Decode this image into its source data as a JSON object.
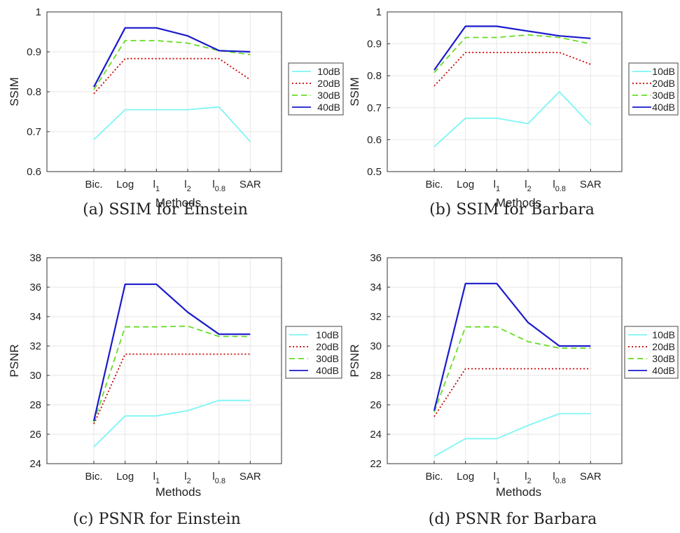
{
  "chart_data": [
    {
      "type": "line",
      "caption": "(a) SSIM for Einstein",
      "xlabel": "Methods",
      "ylabel": "SSIM",
      "categories": [
        {
          "base": "Bic.",
          "sub": ""
        },
        {
          "base": "Log",
          "sub": ""
        },
        {
          "base": "l",
          "sub": "1"
        },
        {
          "base": "l",
          "sub": "2"
        },
        {
          "base": "l",
          "sub": "0.8"
        },
        {
          "base": "SAR",
          "sub": ""
        }
      ],
      "ylim": [
        0.6,
        1
      ],
      "yticks": [
        "0.6",
        "0.7",
        "0.8",
        "0.9",
        "1"
      ],
      "grid": true,
      "legend": "right",
      "series": [
        {
          "name": "10dB",
          "color": "#7ff5f5",
          "dash": "solid",
          "values": [
            0.68,
            0.755,
            0.755,
            0.755,
            0.762,
            0.675
          ]
        },
        {
          "name": "20dB",
          "color": "#cc0000",
          "dash": "dotted",
          "values": [
            0.795,
            0.883,
            0.883,
            0.883,
            0.883,
            0.83
          ]
        },
        {
          "name": "30dB",
          "color": "#66dd22",
          "dash": "dashed",
          "values": [
            0.805,
            0.928,
            0.928,
            0.922,
            0.903,
            0.893
          ]
        },
        {
          "name": "40dB",
          "color": "#1a1acc",
          "dash": "solid",
          "values": [
            0.812,
            0.96,
            0.96,
            0.94,
            0.903,
            0.9
          ]
        }
      ]
    },
    {
      "type": "line",
      "caption": "(b) SSIM for Barbara",
      "xlabel": "Methods",
      "ylabel": "SSIM",
      "categories": [
        {
          "base": "Bic.",
          "sub": ""
        },
        {
          "base": "Log",
          "sub": ""
        },
        {
          "base": "l",
          "sub": "1"
        },
        {
          "base": "l",
          "sub": "2"
        },
        {
          "base": "l",
          "sub": "0.8"
        },
        {
          "base": "SAR",
          "sub": ""
        }
      ],
      "ylim": [
        0.5,
        1
      ],
      "yticks": [
        "0.5",
        "0.6",
        "0.7",
        "0.8",
        "0.9",
        "1"
      ],
      "grid": true,
      "legend": "right",
      "series": [
        {
          "name": "10dB",
          "color": "#7ff5f5",
          "dash": "solid",
          "values": [
            0.578,
            0.667,
            0.667,
            0.65,
            0.75,
            0.647
          ]
        },
        {
          "name": "20dB",
          "color": "#cc0000",
          "dash": "dotted",
          "values": [
            0.768,
            0.873,
            0.873,
            0.873,
            0.873,
            0.836
          ]
        },
        {
          "name": "30dB",
          "color": "#66dd22",
          "dash": "dashed",
          "values": [
            0.81,
            0.92,
            0.92,
            0.928,
            0.92,
            0.9
          ]
        },
        {
          "name": "40dB",
          "color": "#1a1acc",
          "dash": "solid",
          "values": [
            0.818,
            0.955,
            0.955,
            0.94,
            0.925,
            0.917
          ]
        }
      ]
    },
    {
      "type": "line",
      "caption": "(c) PSNR for Einstein",
      "xlabel": "Methods",
      "ylabel": "PSNR",
      "categories": [
        {
          "base": "Bic.",
          "sub": ""
        },
        {
          "base": "Log",
          "sub": ""
        },
        {
          "base": "l",
          "sub": "1"
        },
        {
          "base": "l",
          "sub": "2"
        },
        {
          "base": "l",
          "sub": "0.8"
        },
        {
          "base": "SAR",
          "sub": ""
        }
      ],
      "ylim": [
        24,
        38
      ],
      "yticks": [
        "24",
        "26",
        "28",
        "30",
        "32",
        "34",
        "36",
        "38"
      ],
      "grid": true,
      "legend": "right",
      "series": [
        {
          "name": "10dB",
          "color": "#7ff5f5",
          "dash": "solid",
          "values": [
            25.15,
            27.25,
            27.25,
            27.6,
            28.3,
            28.3
          ]
        },
        {
          "name": "20dB",
          "color": "#cc0000",
          "dash": "dotted",
          "values": [
            26.7,
            31.45,
            31.45,
            31.45,
            31.45,
            31.45
          ]
        },
        {
          "name": "30dB",
          "color": "#66dd22",
          "dash": "dashed",
          "values": [
            26.8,
            33.3,
            33.3,
            33.35,
            32.65,
            32.65
          ]
        },
        {
          "name": "40dB",
          "color": "#1a1acc",
          "dash": "solid",
          "values": [
            26.9,
            36.2,
            36.2,
            34.3,
            32.8,
            32.8
          ]
        }
      ]
    },
    {
      "type": "line",
      "caption": "(d) PSNR for Barbara",
      "xlabel": "Methods",
      "ylabel": "PSNR",
      "categories": [
        {
          "base": "Bic.",
          "sub": ""
        },
        {
          "base": "Log",
          "sub": ""
        },
        {
          "base": "l",
          "sub": "1"
        },
        {
          "base": "l",
          "sub": "2"
        },
        {
          "base": "l",
          "sub": "0.8"
        },
        {
          "base": "SAR",
          "sub": ""
        }
      ],
      "ylim": [
        22,
        36
      ],
      "yticks": [
        "22",
        "24",
        "26",
        "28",
        "30",
        "32",
        "34",
        "36"
      ],
      "grid": true,
      "legend": "right",
      "series": [
        {
          "name": "10dB",
          "color": "#7ff5f5",
          "dash": "solid",
          "values": [
            22.5,
            23.7,
            23.7,
            24.6,
            25.4,
            25.4
          ]
        },
        {
          "name": "20dB",
          "color": "#cc0000",
          "dash": "dotted",
          "values": [
            25.2,
            28.45,
            28.45,
            28.45,
            28.45,
            28.45
          ]
        },
        {
          "name": "30dB",
          "color": "#66dd22",
          "dash": "dashed",
          "values": [
            25.5,
            31.3,
            31.3,
            30.3,
            29.85,
            29.85
          ]
        },
        {
          "name": "40dB",
          "color": "#1a1acc",
          "dash": "solid",
          "values": [
            25.6,
            34.25,
            34.25,
            31.6,
            30.0,
            30.0
          ]
        }
      ]
    }
  ]
}
